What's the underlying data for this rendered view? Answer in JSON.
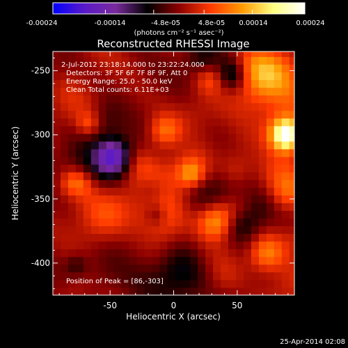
{
  "colorbar": {
    "tick_labels": [
      "-0.00024",
      "-0.00014",
      "-4.8e-05",
      "4.8e-05",
      "0.00014",
      "0.00024"
    ],
    "tick_values": [
      -0.00024,
      -0.00014,
      -4.8e-05,
      4.8e-05,
      0.00014,
      0.00024
    ],
    "range": [
      -0.00024,
      0.00024
    ],
    "units_label": "(photons cm⁻² s⁻¹ asec⁻²)",
    "colors": [
      "#0000ff",
      "#5a1ac8",
      "#7a2a9c",
      "#000000",
      "#8b0000",
      "#ff3a00",
      "#ff9a00",
      "#ffff80",
      "#ffffff"
    ]
  },
  "chart_data": {
    "type": "heatmap",
    "title": "Reconstructed RHESSI Image",
    "xlabel": "Heliocentric X (arcsec)",
    "ylabel": "Heliocentric Y (arcsec)",
    "xlim": [
      -95,
      95
    ],
    "ylim": [
      -425,
      -235
    ],
    "x_ticks": [
      -50,
      0,
      50
    ],
    "y_ticks": [
      -250,
      -300,
      -350,
      -400
    ],
    "annotations": [
      " 2-Jul-2012 23:18:14.000 to 23:22:24.000",
      "Detectors: 3F 5F 6F 7F 8F 9F, Att 0",
      "Energy Range: 25.0 - 50.0 keV",
      "Clean    Total counts: 6.11E+03"
    ],
    "peak_label": "Position of Peak = [86,-303]",
    "peak": [
      86,
      -303
    ],
    "timestamp": "25-Apr-2014 02:08"
  }
}
